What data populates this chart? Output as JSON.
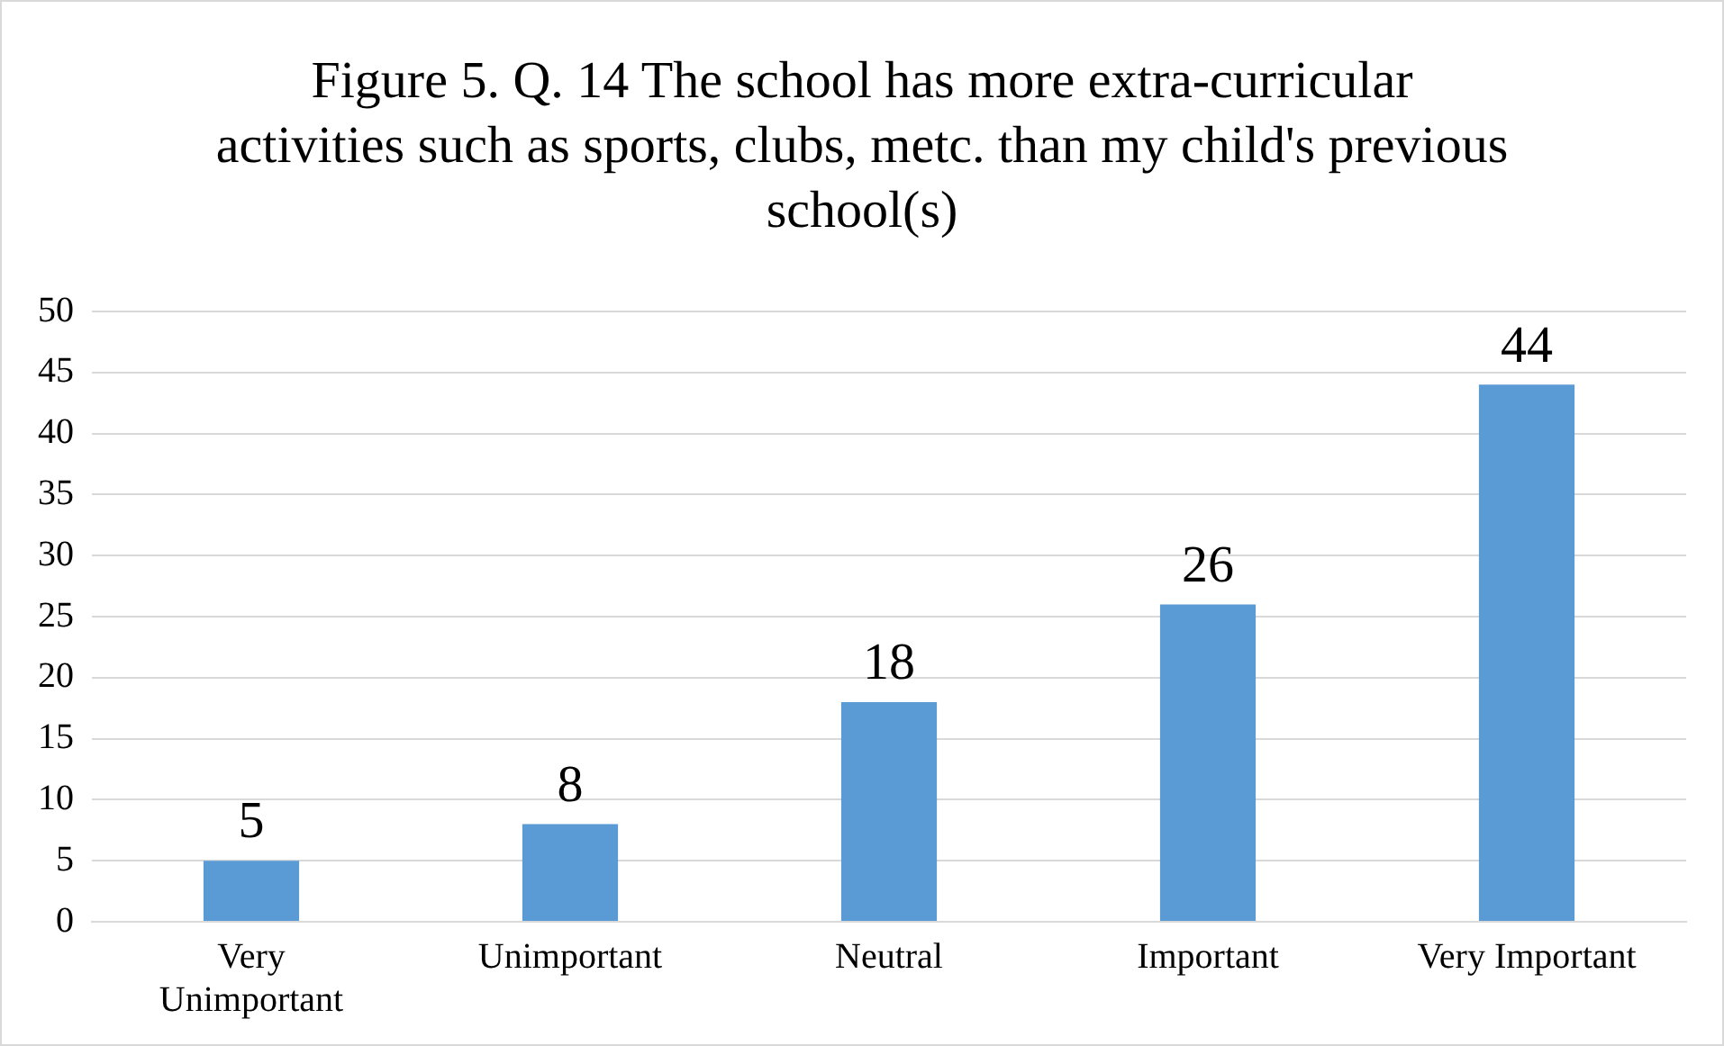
{
  "chart_data": {
    "type": "bar",
    "title": "Figure 5. Q. 14 The school has more extra-curricular activities such as sports, clubs, metc. than my child's previous school(s)",
    "categories": [
      "Very Unimportant",
      "Unimportant",
      "Neutral",
      "Important",
      "Very Important"
    ],
    "values": [
      5,
      8,
      18,
      26,
      44
    ],
    "color": "#5b9bd5",
    "ylim": [
      0,
      50
    ],
    "yticks": [
      0,
      5,
      10,
      15,
      20,
      25,
      30,
      35,
      40,
      45,
      50
    ],
    "grid": "y",
    "data_labels": true,
    "legend": false
  }
}
